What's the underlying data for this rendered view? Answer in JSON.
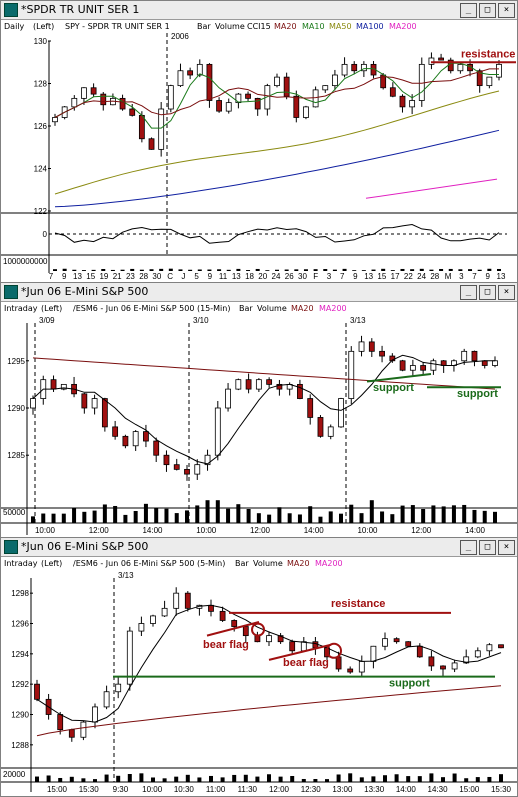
{
  "colors": {
    "up": "#ffffff",
    "down": "#a01010",
    "ma20": "#7a0e0e",
    "ma10": "#1a7a1a",
    "ma50": "#8a8a10",
    "ma100": "#1020a0",
    "ma200": "#e020c0",
    "resistance": "#a01010",
    "support": "#1a6a1a",
    "cci": "#000000"
  },
  "icons": {
    "window": "chart-window-icon",
    "minimize": "minimize-icon",
    "maximize": "maximize-icon",
    "close": "close-icon"
  },
  "window_buttons": {
    "minimize": "_",
    "maximize": "□",
    "close": "×"
  },
  "win1": {
    "title": "*SPDR TR UNIT SER 1",
    "sub": {
      "period": "Daily",
      "axis": "(Left)",
      "symbol": "SPY - SPDR TR UNIT SER 1",
      "bar": "Bar",
      "volume": "Volume",
      "cci": "CCI15",
      "ma20": "MA20",
      "ma10": "MA10",
      "ma50": "MA50",
      "ma100": "MA100",
      "ma200": "MA200"
    },
    "year_label": "2006",
    "annotation": "resistance",
    "y_ticks": [
      "130",
      "128",
      "126",
      "124",
      "122"
    ],
    "cci_tick": "0",
    "volume_tick": "1000000000",
    "x_ticks": [
      "7",
      "9",
      "13",
      "15",
      "19",
      "21",
      "23",
      "28",
      "30",
      "C",
      "J",
      "5",
      "9",
      "11",
      "13",
      "18",
      "20",
      "24",
      "26",
      "30",
      "F",
      "3",
      "7",
      "9",
      "13",
      "15",
      "17",
      "22",
      "24",
      "28",
      "M",
      "3",
      "7",
      "9",
      "13"
    ]
  },
  "win2": {
    "title": "*Jun 06  E-Mini S&P 500",
    "sub": {
      "period": "Intraday",
      "axis": "(Left)",
      "symbol": "/ESM6 - Jun 06  E-Mini S&P 500  (15-Min)",
      "bar": "Bar",
      "volume": "Volume",
      "ma20": "MA20",
      "ma200": "MA200"
    },
    "session_labels": [
      "3/09",
      "3/10",
      "3/13"
    ],
    "annotations": [
      "support",
      "support"
    ],
    "y_ticks": [
      "1295",
      "1290",
      "1285"
    ],
    "volume_tick": "50000",
    "x_ticks": [
      "10:00",
      "12:00",
      "14:00",
      "10:00",
      "12:00",
      "14:00",
      "10:00",
      "12:00",
      "14:00"
    ]
  },
  "win3": {
    "title": "*Jun 06  E-Mini S&P 500",
    "sub": {
      "period": "Intraday",
      "axis": "(Left)",
      "symbol": "/ESM6 - Jun 06  E-Mini S&P 500  (5-Min)",
      "bar": "Bar",
      "volume": "Volume",
      "ma20": "MA20",
      "ma200": "MA200"
    },
    "session_label": "3/13",
    "annotations": {
      "resistance": "resistance",
      "bear_flag_1": "bear flag",
      "bear_flag_2": "bear flag",
      "support": "support"
    },
    "y_ticks": [
      "1298",
      "1296",
      "1294",
      "1292",
      "1290",
      "1288"
    ],
    "volume_tick": "20000",
    "x_ticks": [
      "15:00",
      "15:30",
      "9:30",
      "10:00",
      "10:30",
      "11:00",
      "11:30",
      "12:00",
      "12:30",
      "13:00",
      "13:30",
      "14:00",
      "14:30",
      "15:00",
      "15:30"
    ]
  },
  "chart_data": [
    {
      "type": "candlestick",
      "title": "SPY - SPDR TR UNIT SER 1 (Daily)",
      "ylim": [
        122,
        130
      ],
      "x_ticks": [
        "7",
        "9",
        "13",
        "15",
        "19",
        "21",
        "23",
        "28",
        "30",
        "C",
        "J",
        "5",
        "9",
        "11",
        "13",
        "18",
        "20",
        "24",
        "26",
        "30",
        "F",
        "3",
        "7",
        "9",
        "13",
        "15",
        "17",
        "22",
        "24",
        "28",
        "M",
        "3",
        "7",
        "9",
        "13"
      ],
      "closes": [
        126.4,
        126.9,
        127.3,
        127.8,
        127.5,
        127.0,
        127.3,
        126.8,
        126.5,
        125.4,
        124.9,
        126.8,
        127.9,
        128.6,
        128.4,
        128.9,
        127.2,
        126.7,
        127.1,
        127.5,
        127.3,
        126.8,
        127.9,
        128.3,
        127.4,
        126.4,
        126.9,
        127.7,
        127.9,
        128.4,
        128.9,
        128.6,
        128.9,
        128.4,
        127.8,
        127.4,
        126.9,
        127.2,
        128.9,
        129.2,
        129.1,
        128.6,
        128.9,
        128.6,
        127.9,
        128.3,
        128.9
      ]
    },
    {
      "type": "candlestick",
      "title": "/ESM6 - Jun 06 E-Mini S&P 500 (15-Min)",
      "ylim": [
        1281,
        1299
      ],
      "closes": [
        1291,
        1293,
        1292,
        1292.5,
        1291.5,
        1290,
        1291,
        1288,
        1287,
        1286,
        1287.5,
        1286.5,
        1285,
        1284,
        1283.5,
        1283,
        1284,
        1285,
        1290,
        1292,
        1293,
        1292,
        1293,
        1292.5,
        1292,
        1292.5,
        1291,
        1289,
        1287,
        1288,
        1291,
        1296,
        1297,
        1296,
        1295.5,
        1295,
        1294,
        1294.5,
        1294,
        1295,
        1294.5,
        1295,
        1296,
        1295,
        1294.5,
        1295
      ]
    },
    {
      "type": "candlestick",
      "title": "/ESM6 - Jun 06 E-Mini S&P 500 (5-Min)",
      "ylim": [
        1287,
        1299
      ],
      "closes": [
        1291,
        1290,
        1289,
        1288.5,
        1289.5,
        1290.5,
        1291.5,
        1292,
        1295.5,
        1296,
        1296.5,
        1297,
        1298,
        1297,
        1297.2,
        1296.8,
        1296.2,
        1295.8,
        1295.2,
        1294.8,
        1295.2,
        1294.8,
        1294.2,
        1294.8,
        1294.4,
        1293.8,
        1293,
        1292.8,
        1293.5,
        1294.5,
        1295,
        1294.8,
        1294.5,
        1293.8,
        1293.2,
        1293,
        1293.4,
        1293.8,
        1294.2,
        1294.6,
        1294.4
      ]
    }
  ]
}
